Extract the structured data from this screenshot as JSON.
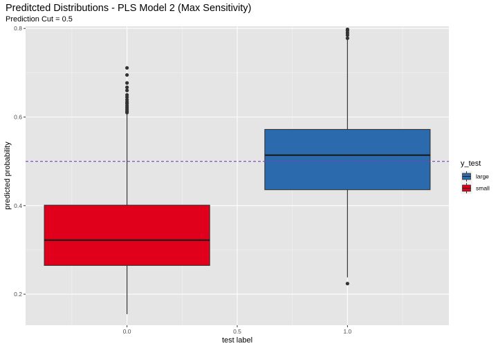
{
  "chart_data": {
    "type": "boxplot",
    "title": "Preditcted Distributions - PLS Model 2 (Max Sensitivity)",
    "subtitle": "Prediction Cut = 0.5",
    "xlabel": "test label",
    "ylabel": "predicted probability",
    "xlim": [
      -0.46,
      1.46
    ],
    "ylim": [
      0.13,
      0.805
    ],
    "x_ticks": [
      0.0,
      0.5,
      1.0
    ],
    "x_tick_labels": [
      "0.0",
      "0.5",
      "1.0"
    ],
    "y_ticks": [
      0.2,
      0.4,
      0.6,
      0.8
    ],
    "y_tick_labels": [
      "0.2",
      "0.4",
      "0.6",
      "0.8"
    ],
    "grid": true,
    "legend_position": "right",
    "legend_title": "y_test",
    "reference_line": {
      "y": 0.5,
      "color": "#7b3fbf",
      "style": "dashed"
    },
    "box_width": 0.75,
    "series": [
      {
        "name": "small",
        "x": 0.0,
        "color": "#e0001b",
        "whisker_low": 0.155,
        "q1": 0.265,
        "median": 0.322,
        "q3": 0.401,
        "whisker_high": 0.607,
        "outliers": [
          0.61,
          0.613,
          0.617,
          0.621,
          0.625,
          0.63,
          0.634,
          0.639,
          0.645,
          0.65,
          0.66,
          0.667,
          0.677,
          0.695,
          0.711
        ]
      },
      {
        "name": "large",
        "x": 1.0,
        "color": "#2b6aad",
        "whisker_low": 0.238,
        "q1": 0.436,
        "median": 0.514,
        "q3": 0.572,
        "whisker_high": 0.776,
        "outliers": [
          0.224,
          0.778,
          0.785,
          0.79,
          0.795,
          0.798
        ]
      }
    ],
    "legend": [
      {
        "label": "large",
        "color": "#2b6aad"
      },
      {
        "label": "small",
        "color": "#e0001b"
      }
    ]
  }
}
